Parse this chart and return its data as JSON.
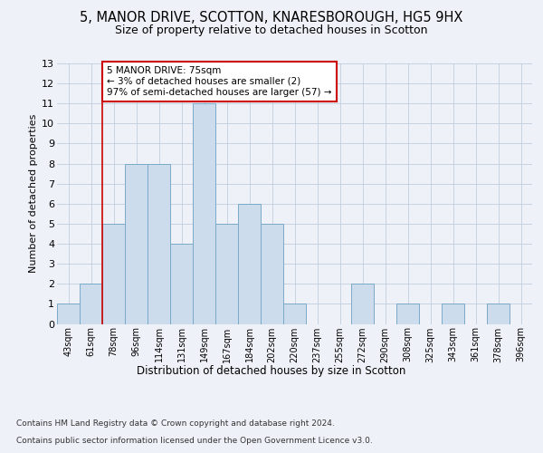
{
  "title1": "5, MANOR DRIVE, SCOTTON, KNARESBOROUGH, HG5 9HX",
  "title2": "Size of property relative to detached houses in Scotton",
  "xlabel": "Distribution of detached houses by size in Scotton",
  "ylabel": "Number of detached properties",
  "categories": [
    "43sqm",
    "61sqm",
    "78sqm",
    "96sqm",
    "114sqm",
    "131sqm",
    "149sqm",
    "167sqm",
    "184sqm",
    "202sqm",
    "220sqm",
    "237sqm",
    "255sqm",
    "272sqm",
    "290sqm",
    "308sqm",
    "325sqm",
    "343sqm",
    "361sqm",
    "378sqm",
    "396sqm"
  ],
  "values": [
    1,
    2,
    5,
    8,
    8,
    4,
    11,
    5,
    6,
    5,
    1,
    0,
    0,
    2,
    0,
    1,
    0,
    1,
    0,
    1,
    0
  ],
  "bar_color": "#ccdcec",
  "bar_edge_color": "#7aaac8",
  "annotation_title": "5 MANOR DRIVE: 75sqm",
  "annotation_line1": "← 3% of detached houses are smaller (2)",
  "annotation_line2": "97% of semi-detached houses are larger (57) →",
  "annotation_box_color": "#ffffff",
  "annotation_box_edge": "#cc0000",
  "vline_color": "#cc0000",
  "vline_x_index": 1.5,
  "ylim": [
    0,
    13
  ],
  "yticks": [
    0,
    1,
    2,
    3,
    4,
    5,
    6,
    7,
    8,
    9,
    10,
    11,
    12,
    13
  ],
  "footer1": "Contains HM Land Registry data © Crown copyright and database right 2024.",
  "footer2": "Contains public sector information licensed under the Open Government Licence v3.0.",
  "background_color": "#eef2f8"
}
